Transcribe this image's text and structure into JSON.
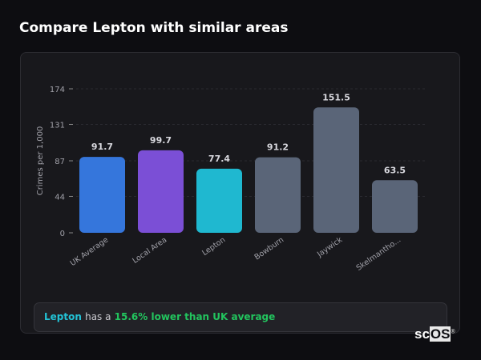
{
  "title": "Compare Lepton with similar areas",
  "chart_data": {
    "type": "bar",
    "categories": [
      "UK Average",
      "Local Area",
      "Lepton",
      "Bowburn",
      "Jaywick",
      "Skelmantho..."
    ],
    "values": [
      91.7,
      99.7,
      77.4,
      91.2,
      151.5,
      63.5
    ],
    "colors": [
      "#3576dc",
      "#7b4fd6",
      "#1fb8d0",
      "#5a6578",
      "#5a6578",
      "#5a6578"
    ],
    "ylabel": "Crimes per 1,000",
    "yticks": [
      0,
      44,
      87,
      131,
      174
    ],
    "ylim": [
      0,
      174
    ],
    "grid": true
  },
  "footer": {
    "area": "Lepton",
    "text1": "has a",
    "highlight": "15.6% lower than UK average"
  },
  "logo": "scOS"
}
